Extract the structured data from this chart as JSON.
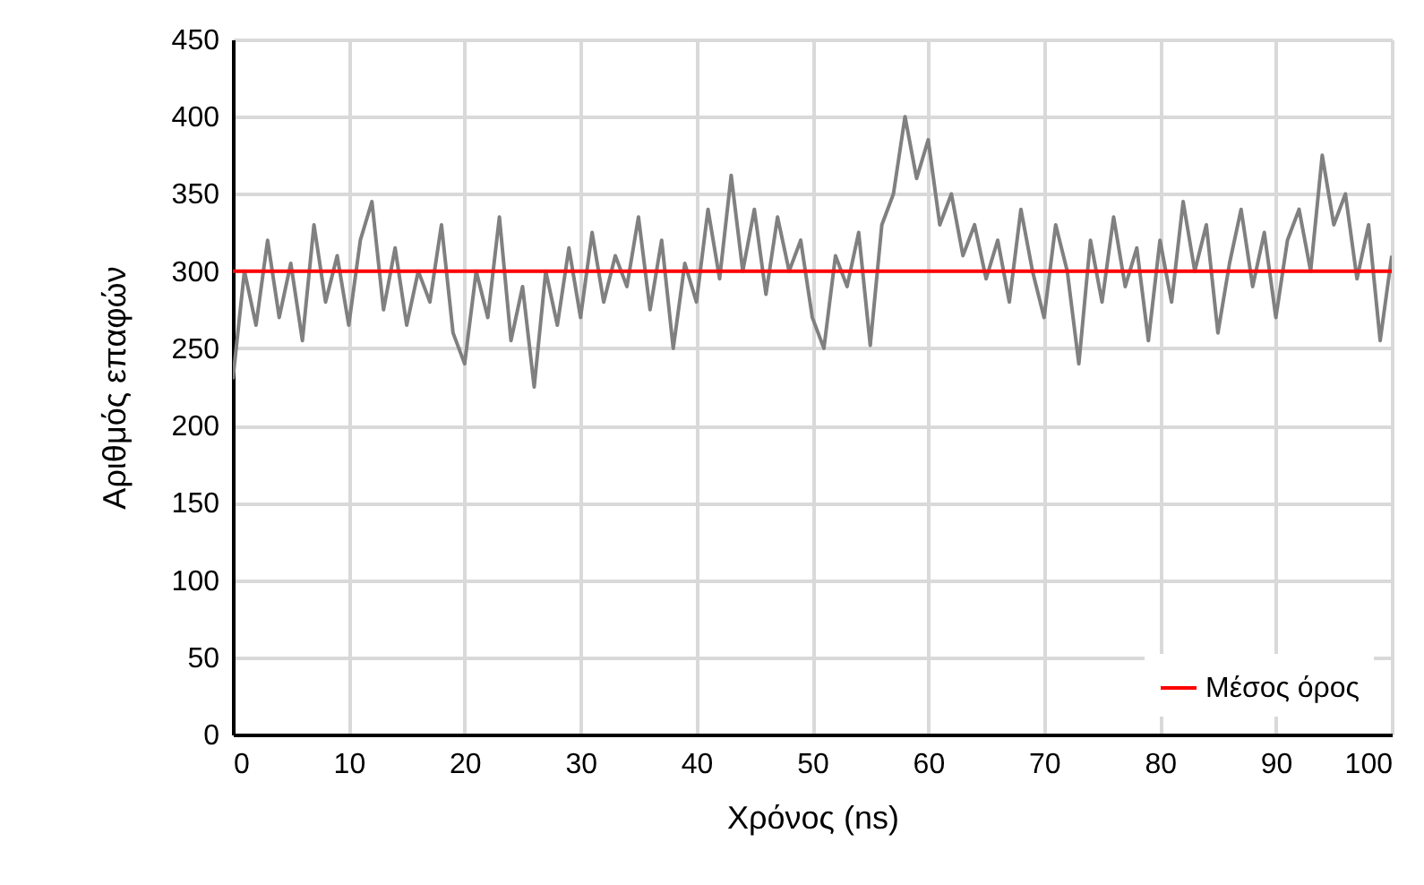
{
  "chart_data": {
    "type": "line",
    "xlabel": "Χρόνος (ns)",
    "ylabel": "Αριθμός επαφών",
    "xlim": [
      0,
      100
    ],
    "xticks": [
      0,
      10,
      20,
      30,
      40,
      50,
      60,
      70,
      80,
      90,
      100
    ],
    "ylim": [
      0,
      450
    ],
    "yticks": [
      0,
      50,
      100,
      150,
      200,
      250,
      300,
      350,
      400,
      450
    ],
    "grid": true,
    "legend": "bottom right",
    "series": [
      {
        "color": "#808080",
        "x": [
          0,
          1,
          2,
          3,
          4,
          5,
          6,
          7,
          8,
          9,
          10,
          11,
          12,
          13,
          14,
          15,
          16,
          17,
          18,
          19,
          20,
          21,
          22,
          23,
          24,
          25,
          26,
          27,
          28,
          29,
          30,
          31,
          32,
          33,
          34,
          35,
          36,
          37,
          38,
          39,
          40,
          41,
          42,
          43,
          44,
          45,
          46,
          47,
          48,
          49,
          50,
          51,
          52,
          53,
          54,
          55,
          56,
          57,
          58,
          59,
          60,
          61,
          62,
          63,
          64,
          65,
          66,
          67,
          68,
          69,
          70,
          71,
          72,
          73,
          74,
          75,
          76,
          77,
          78,
          79,
          80,
          81,
          82,
          83,
          84,
          85,
          86,
          87,
          88,
          89,
          90,
          91,
          92,
          93,
          94,
          95,
          96,
          97,
          98,
          99,
          100
        ],
        "values": [
          230,
          300,
          265,
          320,
          270,
          305,
          255,
          330,
          280,
          310,
          265,
          320,
          345,
          275,
          315,
          265,
          300,
          280,
          330,
          260,
          240,
          300,
          270,
          335,
          255,
          290,
          225,
          300,
          265,
          315,
          270,
          325,
          280,
          310,
          290,
          335,
          275,
          320,
          250,
          305,
          280,
          340,
          295,
          362,
          300,
          340,
          285,
          335,
          300,
          320,
          270,
          250,
          310,
          290,
          325,
          252,
          330,
          350,
          400,
          360,
          385,
          330,
          350,
          310,
          330,
          295,
          320,
          280,
          340,
          300,
          270,
          330,
          300,
          240,
          320,
          280,
          335,
          290,
          315,
          255,
          320,
          280,
          345,
          300,
          330,
          260,
          305,
          340,
          290,
          325,
          270,
          320,
          340,
          300,
          375,
          330,
          350,
          295,
          330,
          255,
          310
        ]
      },
      {
        "name": "Μέσος όρος",
        "color": "#ff0000",
        "x": [
          0,
          100
        ],
        "values": [
          300,
          300
        ]
      }
    ]
  }
}
